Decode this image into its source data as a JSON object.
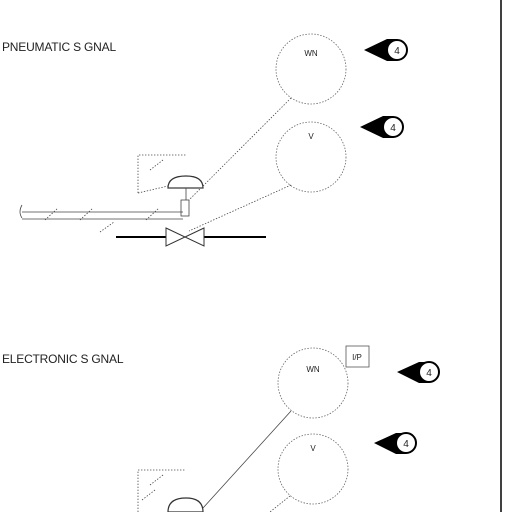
{
  "sections": [
    {
      "title": "PNEUMATIC S GNAL",
      "instruments": [
        {
          "tag": "WN",
          "callout": "4"
        },
        {
          "tag": "V",
          "callout": "4"
        }
      ]
    },
    {
      "title": "ELECTRONIC S GNAL",
      "instruments": [
        {
          "tag": "WN",
          "callout": "4"
        },
        {
          "tag": "V",
          "callout": "4"
        }
      ],
      "converter_tag": "I/P"
    }
  ]
}
